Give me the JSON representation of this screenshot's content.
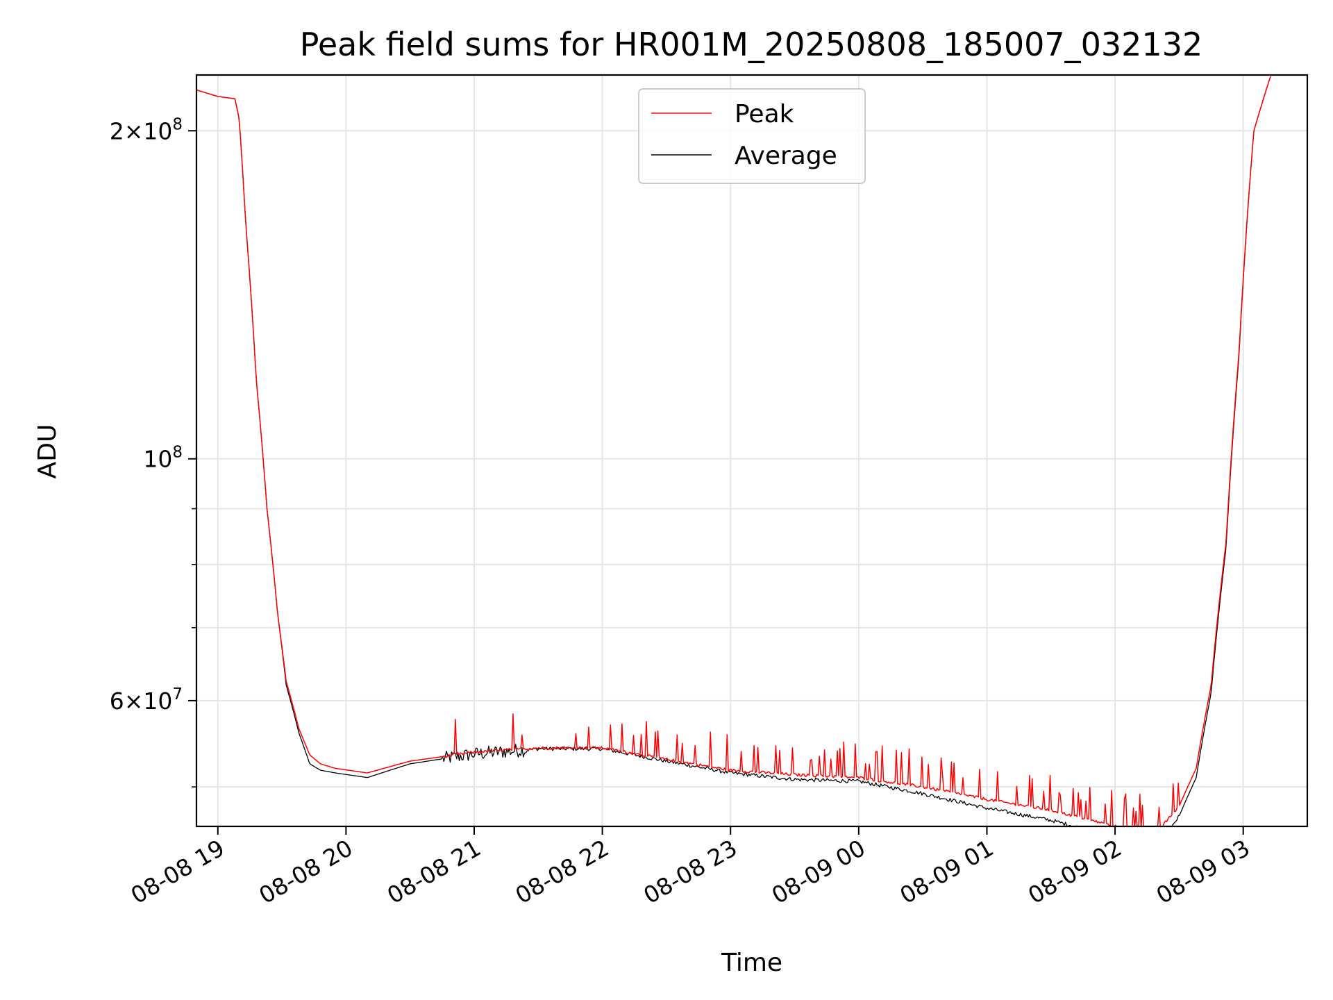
{
  "chart_data": {
    "type": "line",
    "title": "Peak field sums for HR001M_20250808_185007_032132",
    "xlabel": "Time",
    "ylabel": "ADU",
    "y_scale": "log",
    "x_range": [
      "2025-08-08 18:50",
      "2025-08-09 03:30"
    ],
    "ylim": [
      46000000,
      225000000
    ],
    "grid": true,
    "legend_position": "upper center",
    "x_ticks": [
      {
        "value": "2025-08-08 19:00",
        "label": "08-08 19"
      },
      {
        "value": "2025-08-08 20:00",
        "label": "08-08 20"
      },
      {
        "value": "2025-08-08 21:00",
        "label": "08-08 21"
      },
      {
        "value": "2025-08-08 22:00",
        "label": "08-08 22"
      },
      {
        "value": "2025-08-08 23:00",
        "label": "08-08 23"
      },
      {
        "value": "2025-08-09 00:00",
        "label": "08-09 00"
      },
      {
        "value": "2025-08-09 01:00",
        "label": "08-09 01"
      },
      {
        "value": "2025-08-09 02:00",
        "label": "08-09 02"
      },
      {
        "value": "2025-08-09 03:00",
        "label": "08-09 03"
      }
    ],
    "y_major_ticks": [
      {
        "value": 60000000,
        "mantissa": "6",
        "exponent": "7"
      },
      {
        "value": 100000000,
        "mantissa": "",
        "exponent": "8"
      },
      {
        "value": 200000000,
        "mantissa": "2",
        "exponent": "8"
      }
    ],
    "y_minor_ticks": [
      50000000,
      70000000,
      80000000,
      90000000
    ],
    "series": [
      {
        "name": "Peak",
        "color": "#ff0000",
        "x": [
          "2025-08-08 18:50",
          "2025-08-08 19:00",
          "2025-08-08 19:08",
          "2025-08-08 19:10",
          "2025-08-08 19:13",
          "2025-08-08 19:18",
          "2025-08-08 19:23",
          "2025-08-08 19:28",
          "2025-08-08 19:32",
          "2025-08-08 19:38",
          "2025-08-08 19:43",
          "2025-08-08 19:48",
          "2025-08-08 19:55",
          "2025-08-08 20:10",
          "2025-08-08 20:30",
          "2025-08-08 21:00",
          "2025-08-08 21:30",
          "2025-08-08 22:00",
          "2025-08-08 22:30",
          "2025-08-08 23:00",
          "2025-08-08 23:30",
          "2025-08-09 00:00",
          "2025-08-09 00:30",
          "2025-08-09 01:00",
          "2025-08-09 01:30",
          "2025-08-09 02:00",
          "2025-08-09 02:15",
          "2025-08-09 02:22",
          "2025-08-09 02:30",
          "2025-08-09 02:38",
          "2025-08-09 02:45",
          "2025-08-09 02:52",
          "2025-08-09 02:58",
          "2025-08-09 03:05",
          "2025-08-09 03:13"
        ],
        "y": [
          218000000,
          215000000,
          214000000,
          205000000,
          165000000,
          118000000,
          90000000,
          72000000,
          62500000,
          56500000,
          53500000,
          52500000,
          52000000,
          51500000,
          52800000,
          53800000,
          54300000,
          54300000,
          53000000,
          51800000,
          51300000,
          51000000,
          50000000,
          48700000,
          47600000,
          46000000,
          45700000,
          46000000,
          48000000,
          52000000,
          62000000,
          84000000,
          125000000,
          200000000,
          225000000
        ]
      },
      {
        "name": "Average",
        "color": "#000000",
        "x": [
          "2025-08-08 18:50",
          "2025-08-08 19:00",
          "2025-08-08 19:08",
          "2025-08-08 19:10",
          "2025-08-08 19:13",
          "2025-08-08 19:18",
          "2025-08-08 19:23",
          "2025-08-08 19:28",
          "2025-08-08 19:32",
          "2025-08-08 19:38",
          "2025-08-08 19:43",
          "2025-08-08 19:48",
          "2025-08-08 19:55",
          "2025-08-08 20:10",
          "2025-08-08 20:30",
          "2025-08-08 21:00",
          "2025-08-08 21:30",
          "2025-08-08 22:00",
          "2025-08-08 22:30",
          "2025-08-08 23:00",
          "2025-08-08 23:30",
          "2025-08-09 00:00",
          "2025-08-09 00:30",
          "2025-08-09 01:00",
          "2025-08-09 01:30",
          "2025-08-09 02:00",
          "2025-08-09 02:15",
          "2025-08-09 02:22",
          "2025-08-09 02:30",
          "2025-08-09 02:38",
          "2025-08-09 02:45",
          "2025-08-09 02:52",
          "2025-08-09 02:58",
          "2025-08-09 03:05",
          "2025-08-09 03:13"
        ],
        "y": [
          218000000,
          215000000,
          214000000,
          205000000,
          165000000,
          118000000,
          90000000,
          72000000,
          62000000,
          56000000,
          52500000,
          51800000,
          51500000,
          51000000,
          52500000,
          53600000,
          54200000,
          54200000,
          52800000,
          51500000,
          50800000,
          50600000,
          49300000,
          47800000,
          46600000,
          45000000,
          44500000,
          44800000,
          47000000,
          51000000,
          61000000,
          83000000,
          124000000,
          200000000,
          225000000
        ]
      }
    ]
  }
}
